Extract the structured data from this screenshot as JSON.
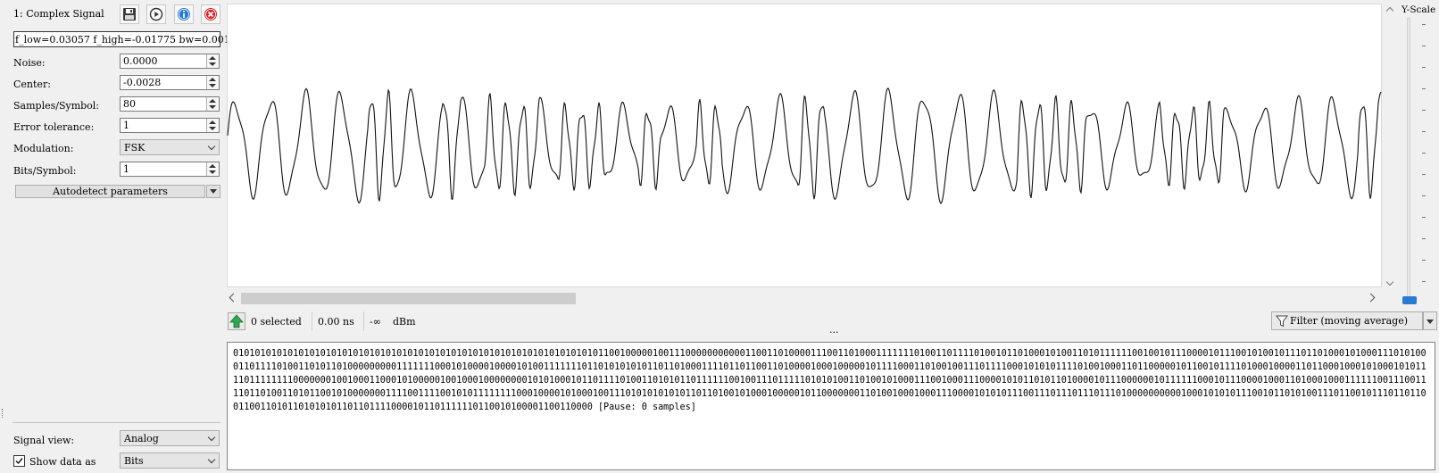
{
  "signal": {
    "title": "1: Complex Signal",
    "info_text": "f_low=0.03057 f_high=-0.01775 bw=0.001",
    "color_accent": "#2a7ad5"
  },
  "params": {
    "noise_label": "Noise:",
    "noise_value": "0.0000",
    "center_label": "Center:",
    "center_value": "-0.0028",
    "sps_label": "Samples/Symbol:",
    "sps_value": "80",
    "err_label": "Error tolerance:",
    "err_value": "1",
    "mod_label": "Modulation:",
    "mod_value": "FSK",
    "bps_label": "Bits/Symbol:",
    "bps_value": "1",
    "autodetect_label": "Autodetect parameters"
  },
  "view": {
    "signal_view_label": "Signal view:",
    "signal_view_value": "Analog",
    "show_data_label": "Show data as",
    "show_data_value": "Bits",
    "show_data_checked": true
  },
  "yscale": {
    "label": "Y-Scale"
  },
  "status": {
    "selected": "0 selected",
    "time": "0.00 ns",
    "power_value": "-∞",
    "power_unit": "dBm",
    "filter_label": "Filter (moving average)",
    "divider_dots": "..."
  },
  "icons": {
    "save": "floppy-disk-icon",
    "replay": "play-circle-icon",
    "info": "info-icon",
    "close": "close-icon",
    "export": "green-up-arrow-icon",
    "filter": "funnel-icon"
  },
  "data_view": {
    "bits": "010101010101010101010101010101010101010101010101010101010101010101011001000001001110000000000011001101000011100110100011111110100110111101001011010001010011010111111001001011100001011100101001011101101000101000111010100011011110100110101101000000000111111100010100001000010100111111101101010101011011010001111011011001101000010001000001011110001101001001110111100010101011110100100011011000001011001011110100010000110110001000101000101011110111111110000000100100011000101000001001000100000000101010001011011110100110101011011111100100111011111010101001101001010001110010001110000101011010110100001011100000010111111000101110000100011010001000111111001110011110110100110101100101000000011110011110010101111111100010000101000100111010101010101101101001010001000001011000000011010010001000111000010101011100111011101110111010000000000100010101011100101101010011101100101110110110011001101011010101011011011110000101101111110110010100001100110000",
    "pause_text": "[Pause: 0 samples]"
  }
}
